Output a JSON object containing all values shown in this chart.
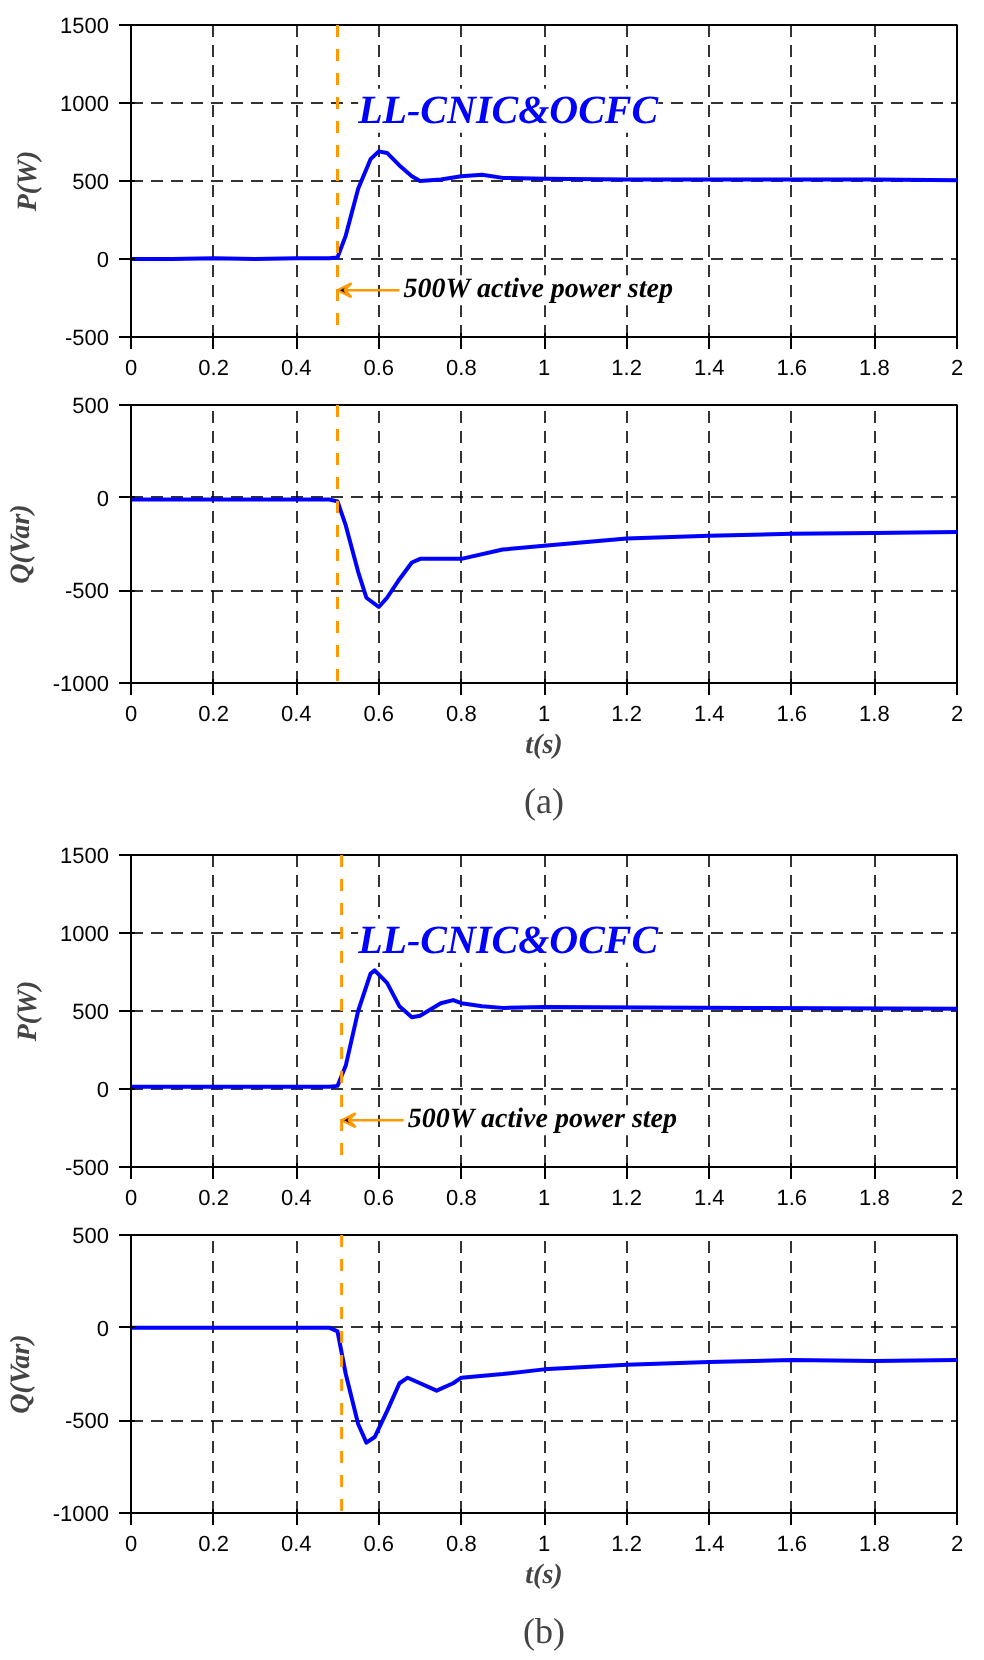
{
  "chart_data": [
    {
      "type": "line",
      "ylabel": "P(W)",
      "xlim": [
        0,
        2
      ],
      "xticks": [
        0,
        0.2,
        0.4,
        0.6,
        0.8,
        1,
        1.2,
        1.4,
        1.6,
        1.8,
        2
      ],
      "ylim": [
        -500,
        1500
      ],
      "yticks": [
        -500,
        0,
        500,
        1000,
        1500
      ],
      "grid": true,
      "line_style": "solid",
      "series": [
        {
          "color": "#0000ff",
          "x": [
            0,
            0.1,
            0.2,
            0.3,
            0.4,
            0.48,
            0.5,
            0.52,
            0.55,
            0.58,
            0.6,
            0.62,
            0.65,
            0.68,
            0.7,
            0.75,
            0.8,
            0.85,
            0.9,
            1.0,
            1.2,
            1.4,
            1.6,
            1.8,
            2.0
          ],
          "values": [
            0,
            0,
            5,
            0,
            5,
            5,
            10,
            150,
            450,
            640,
            690,
            680,
            600,
            530,
            500,
            510,
            530,
            540,
            520,
            515,
            510,
            510,
            510,
            510,
            505
          ]
        }
      ],
      "ref_lines": [
        {
          "axis": "x",
          "value": 0.5,
          "color": "#ff9900",
          "line_style": "dashed"
        }
      ],
      "annotations": [
        "LL-CNIC&OCFC",
        {
          "text": "500W active power step",
          "x": 0.5,
          "y": -200
        }
      ]
    },
    {
      "type": "line",
      "ylabel": "Q(Var)",
      "xlabel": "t(s)",
      "xlim": [
        0,
        2
      ],
      "xticks": [
        0,
        0.2,
        0.4,
        0.6,
        0.8,
        1,
        1.2,
        1.4,
        1.6,
        1.8,
        2
      ],
      "ylim": [
        -1000,
        500
      ],
      "yticks": [
        -1000,
        -500,
        0,
        500
      ],
      "grid": true,
      "line_style": "solid",
      "series": [
        {
          "color": "#0000ff",
          "x": [
            0,
            0.1,
            0.2,
            0.3,
            0.4,
            0.48,
            0.5,
            0.52,
            0.55,
            0.57,
            0.6,
            0.62,
            0.65,
            0.68,
            0.7,
            0.8,
            0.9,
            1.0,
            1.2,
            1.4,
            1.6,
            1.8,
            2.0
          ],
          "values": [
            -10,
            -10,
            -10,
            -10,
            -10,
            -10,
            -20,
            -150,
            -400,
            -540,
            -590,
            -540,
            -440,
            -350,
            -330,
            -330,
            -280,
            -260,
            -220,
            -205,
            -195,
            -190,
            -185
          ]
        }
      ],
      "ref_lines": [
        {
          "axis": "x",
          "value": 0.5,
          "color": "#ff9900",
          "line_style": "dashed"
        }
      ],
      "annotations": [
        "(a)"
      ]
    },
    {
      "type": "line",
      "ylabel": "P(W)",
      "xlim": [
        0,
        2
      ],
      "xticks": [
        0,
        0.2,
        0.4,
        0.6,
        0.8,
        1,
        1.2,
        1.4,
        1.6,
        1.8,
        2
      ],
      "ylim": [
        -500,
        1500
      ],
      "yticks": [
        -500,
        0,
        500,
        1000,
        1500
      ],
      "grid": true,
      "line_style": "solid",
      "series": [
        {
          "color": "#0000ff",
          "x": [
            0,
            0.1,
            0.2,
            0.3,
            0.4,
            0.48,
            0.5,
            0.52,
            0.55,
            0.58,
            0.59,
            0.62,
            0.65,
            0.68,
            0.7,
            0.75,
            0.78,
            0.8,
            0.85,
            0.9,
            1.0,
            1.5,
            2.0
          ],
          "values": [
            15,
            15,
            15,
            15,
            15,
            15,
            20,
            150,
            500,
            740,
            760,
            680,
            530,
            460,
            470,
            550,
            570,
            550,
            530,
            520,
            525,
            520,
            515
          ]
        }
      ],
      "ref_lines": [
        {
          "axis": "x",
          "value": 0.51,
          "color": "#ff9900",
          "line_style": "dashed"
        }
      ],
      "annotations": [
        "LL-CNIC&OCFC",
        {
          "text": "500W active power step",
          "x": 0.51,
          "y": -200
        }
      ]
    },
    {
      "type": "line",
      "ylabel": "Q(Var)",
      "xlabel": "t(s)",
      "xlim": [
        0,
        2
      ],
      "xticks": [
        0,
        0.2,
        0.4,
        0.6,
        0.8,
        1,
        1.2,
        1.4,
        1.6,
        1.8,
        2
      ],
      "ylim": [
        -1000,
        500
      ],
      "yticks": [
        -1000,
        -500,
        0,
        500
      ],
      "grid": true,
      "line_style": "solid",
      "series": [
        {
          "color": "#0000ff",
          "x": [
            0,
            0.1,
            0.2,
            0.3,
            0.4,
            0.48,
            0.5,
            0.52,
            0.55,
            0.57,
            0.59,
            0.62,
            0.65,
            0.67,
            0.7,
            0.74,
            0.78,
            0.8,
            0.9,
            1.0,
            1.2,
            1.4,
            1.6,
            1.8,
            2.0
          ],
          "values": [
            0,
            0,
            0,
            0,
            0,
            0,
            -20,
            -250,
            -520,
            -620,
            -590,
            -450,
            -300,
            -270,
            -300,
            -340,
            -300,
            -270,
            -250,
            -225,
            -200,
            -185,
            -175,
            -180,
            -175
          ]
        }
      ],
      "ref_lines": [
        {
          "axis": "x",
          "value": 0.51,
          "color": "#ff9900",
          "line_style": "dashed"
        }
      ],
      "annotations": [
        "(b)"
      ]
    }
  ]
}
